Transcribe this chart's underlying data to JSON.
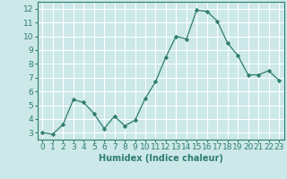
{
  "x": [
    0,
    1,
    2,
    3,
    4,
    5,
    6,
    7,
    8,
    9,
    10,
    11,
    12,
    13,
    14,
    15,
    16,
    17,
    18,
    19,
    20,
    21,
    22,
    23
  ],
  "y": [
    3.0,
    2.9,
    3.6,
    5.4,
    5.2,
    4.4,
    3.3,
    4.2,
    3.5,
    3.9,
    5.5,
    6.7,
    8.5,
    10.0,
    9.8,
    11.9,
    11.8,
    11.1,
    9.5,
    8.6,
    7.2,
    7.2,
    7.5,
    6.8
  ],
  "xlabel": "Humidex (Indice chaleur)",
  "ylim": [
    2.5,
    12.5
  ],
  "xlim": [
    -0.5,
    23.5
  ],
  "yticks": [
    3,
    4,
    5,
    6,
    7,
    8,
    9,
    10,
    11,
    12
  ],
  "xticks": [
    0,
    1,
    2,
    3,
    4,
    5,
    6,
    7,
    8,
    9,
    10,
    11,
    12,
    13,
    14,
    15,
    16,
    17,
    18,
    19,
    20,
    21,
    22,
    23
  ],
  "line_color": "#2e7d6e",
  "marker_color": "#2e7d6e",
  "bg_color": "#cce8e8",
  "grid_color": "#ffffff",
  "axes_color": "#2e7d6e",
  "label_color": "#2e7d6e",
  "xlabel_fontsize": 7,
  "tick_fontsize": 6.5
}
